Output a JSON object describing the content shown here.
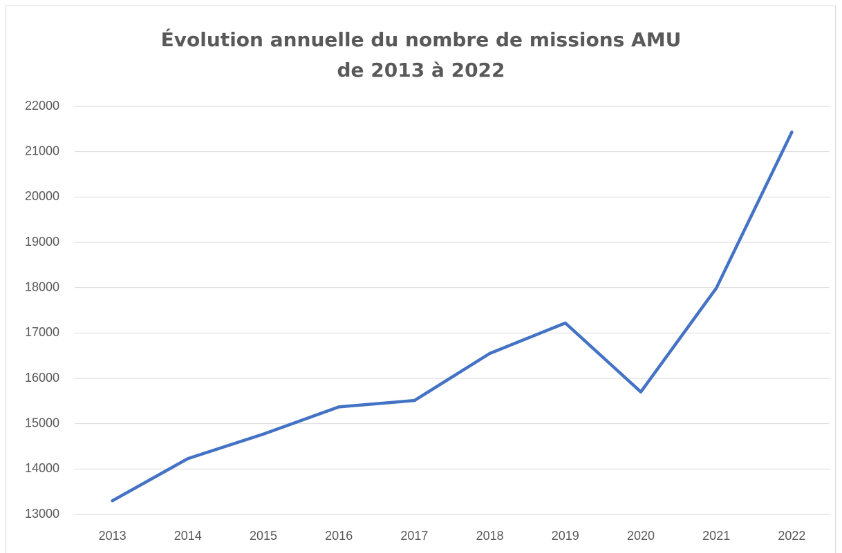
{
  "chart_data": {
    "type": "line",
    "title": "Évolution annuelle du nombre de missions AMU\nde 2013 à 2022",
    "categories": [
      "2013",
      "2014",
      "2015",
      "2016",
      "2017",
      "2018",
      "2019",
      "2020",
      "2021",
      "2022"
    ],
    "values": [
      13300,
      14230,
      14770,
      15370,
      15510,
      16550,
      17220,
      15700,
      17990,
      21430
    ],
    "color": "#4472c4",
    "ylim": [
      13000,
      22000
    ],
    "yticks": [
      13000,
      14000,
      15000,
      16000,
      17000,
      18000,
      19000,
      20000,
      21000,
      22000
    ],
    "grid": true
  }
}
